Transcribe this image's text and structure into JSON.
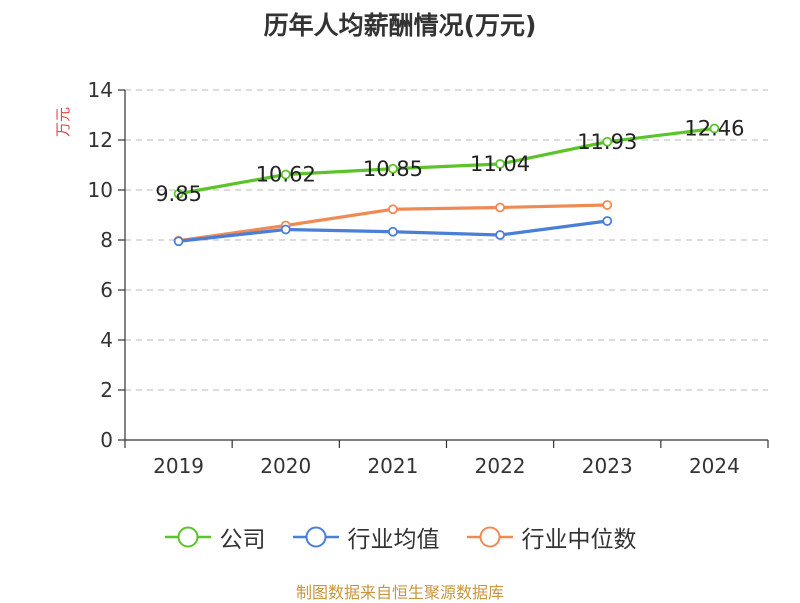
{
  "source_text": "制图数据来自恒生聚源数据库",
  "colors": {
    "source": "#c8963c",
    "ylabel": "#e0473e",
    "axis": "#333333",
    "grid": "#c8c8c8"
  },
  "chart_data": {
    "type": "line",
    "title": "历年人均薪酬情况(万元)",
    "xlabel": "",
    "ylabel": "万元",
    "categories": [
      "2019",
      "2020",
      "2021",
      "2022",
      "2023",
      "2024"
    ],
    "ylim": [
      0,
      14
    ],
    "yticks": [
      0,
      2,
      4,
      6,
      8,
      10,
      12,
      14
    ],
    "grid": true,
    "legend_position": "bottom",
    "series": [
      {
        "name": "公司",
        "color": "#5cc42a",
        "values": [
          9.85,
          10.62,
          10.85,
          11.04,
          11.93,
          12.46
        ],
        "labels": [
          "9.85",
          "10.62",
          "10.85",
          "11.04",
          "11.93",
          "12.46"
        ]
      },
      {
        "name": "行业均值",
        "color": "#4a7fd8",
        "values": [
          7.95,
          8.42,
          8.33,
          8.2,
          8.76,
          null
        ]
      },
      {
        "name": "行业中位数",
        "color": "#f08a55",
        "values": [
          7.97,
          8.58,
          9.23,
          9.3,
          9.4,
          null
        ]
      }
    ]
  }
}
